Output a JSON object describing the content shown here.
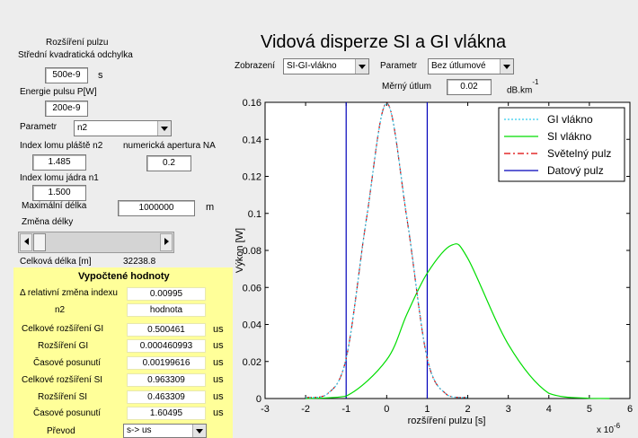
{
  "left": {
    "pulse_width_title": "Rozšíření pulzu",
    "std_dev_label": "Střední kvadratická  odchylka",
    "pulse_width_value": "500e-9",
    "pulse_width_unit": "s",
    "energy_label": "Energie pulsu P[W]",
    "energy_value": "200e-9",
    "parameter_label": "Parametr",
    "parameter_selected": "n2",
    "n2_label": "Index lomu pláště n2",
    "na_label": "numerická apertura NA",
    "n2_value": "1.485",
    "na_value": "0.2",
    "n1_label": "Index lomu jádra n1",
    "n1_value": "1.500",
    "max_length_label": "Maximální délka",
    "max_length_value": "1000000",
    "max_length_unit": "m",
    "length_change_label": "Změna délky",
    "length_change_level": 0.02,
    "total_length_label": "Celková délka [m]",
    "total_length_value": "32238.8"
  },
  "results": {
    "title": "Vypočtené hodnoty",
    "rows": [
      {
        "label": "Δ relativní změna indexu",
        "value": "0.00995",
        "unit": ""
      },
      {
        "label": "n2",
        "value": "hodnota",
        "unit": ""
      },
      {
        "label": "Celkové rozšíření GI",
        "value": "0.500461",
        "unit": "us"
      },
      {
        "label": "Rozšíření GI",
        "value": "0.000460993",
        "unit": "us"
      },
      {
        "label": "Časové posunutí",
        "value": "0.00199616",
        "unit": "us"
      },
      {
        "label": "Celkové rozšíření SI",
        "value": "0.963309",
        "unit": "us"
      },
      {
        "label": "Rozšíření SI",
        "value": "0.463309",
        "unit": "us"
      },
      {
        "label": "Časové posunutí",
        "value": "1.60495",
        "unit": "us"
      }
    ],
    "conversion_label": "Převod",
    "conversion_selected": "s-> us"
  },
  "top": {
    "title": "Vidová disperze SI a GI vlákna",
    "display_label": "Zobrazení",
    "display_selected": "SI-GI-vlákno",
    "param_label": "Parametr",
    "param_selected": "Bez útlumové",
    "attenuation_label": "Měrný útlum",
    "attenuation_value": "0.02",
    "attenuation_unit": "dB.km",
    "attenuation_exp": "-1"
  },
  "colors": {
    "gi": "#33ccee",
    "si": "#00dd00",
    "light": "#dd0000",
    "data": "#0000bb",
    "panel": "#ffff99"
  },
  "chart_data": {
    "type": "line",
    "xlabel": "rozšíření pulzu [s]",
    "ylabel": "Výkon [W]",
    "x_multiplier": "x 10",
    "x_exponent": "-6",
    "xlim": [
      -3,
      6
    ],
    "ylim": [
      0,
      0.16
    ],
    "xticks": [
      -3,
      -2,
      -1,
      0,
      1,
      2,
      3,
      4,
      5,
      6
    ],
    "yticks": [
      0,
      0.02,
      0.04,
      0.06,
      0.08,
      0.1,
      0.12,
      0.14,
      0.16
    ],
    "xtick_labels": [
      "-3",
      "-2",
      "-1",
      "0",
      "1",
      "2",
      "3",
      "4",
      "5",
      "6"
    ],
    "ytick_labels": [
      "0",
      "0.02",
      "0.04",
      "0.06",
      "0.08",
      "0.1",
      "0.12",
      "0.14",
      "0.16"
    ],
    "legend_position": "top-right",
    "series": [
      {
        "name": "GI vlákno",
        "style": "dotted",
        "color": "#33ccee",
        "x": [
          -2.0,
          -1.5,
          -1.0,
          -0.5,
          0.0,
          0.5,
          1.0,
          1.5,
          2.0
        ],
        "y": [
          0.0005,
          0.0018,
          0.0216,
          0.097,
          0.1594,
          0.0975,
          0.0219,
          0.0018,
          0.0005
        ]
      },
      {
        "name": "SI vlákno",
        "style": "solid",
        "color": "#00dd00",
        "x": [
          -2.0,
          -1.0,
          0.0,
          0.5,
          1.0,
          1.6,
          2.0,
          3.0,
          4.0,
          5.0,
          5.5
        ],
        "y": [
          0.0,
          0.0013,
          0.0209,
          0.0456,
          0.0677,
          0.0828,
          0.0757,
          0.0292,
          0.0028,
          0.0001,
          0.0
        ]
      },
      {
        "name": "Světelný pulz",
        "style": "dashdot",
        "color": "#dd0000",
        "x": [
          -2.0,
          -1.5,
          -1.0,
          -0.5,
          0.0,
          0.5,
          1.0,
          1.5,
          2.0
        ],
        "y": [
          0.0005,
          0.0018,
          0.0216,
          0.097,
          0.1596,
          0.097,
          0.0216,
          0.0018,
          0.0005
        ]
      },
      {
        "name": "Datový pulz",
        "style": "solid",
        "color": "#0000bb",
        "vlines": [
          -1,
          1
        ]
      }
    ]
  }
}
